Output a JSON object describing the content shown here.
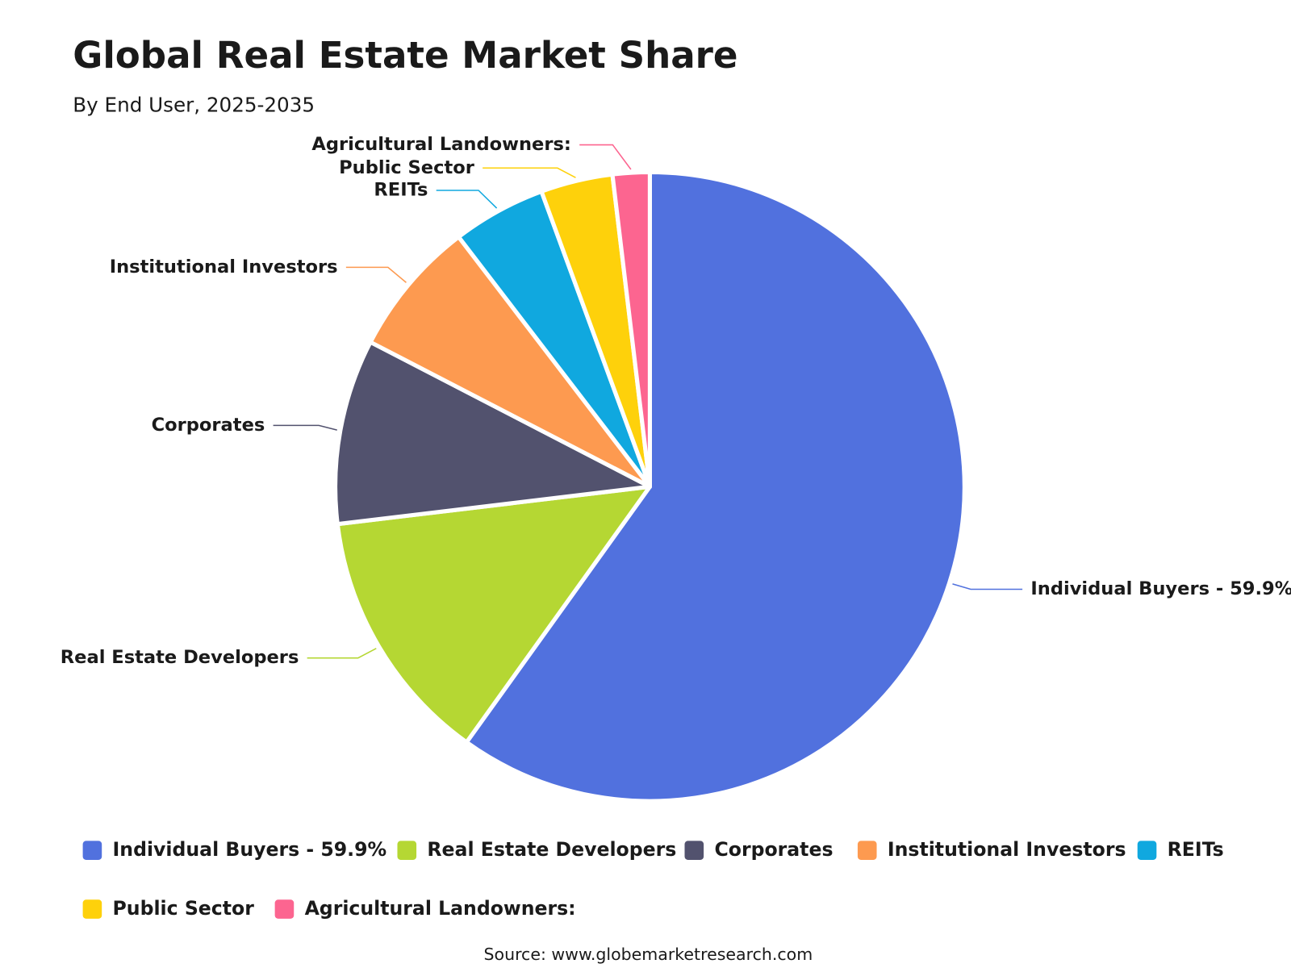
{
  "chart_data": {
    "type": "pie",
    "title": "Global Real Estate Market Share",
    "subtitle": "By End User, 2025-2035",
    "categories": [
      "Individual Buyers - 59.9%",
      "Real Estate Developers",
      "Corporates",
      "Institutional Investors",
      "REITs",
      "Public Sector",
      "Agricultural Landowners:"
    ],
    "values": [
      59.9,
      13.2,
      9.5,
      7.0,
      4.8,
      3.7,
      1.9
    ],
    "colors": [
      "#5171de",
      "#b5d733",
      "#52526e",
      "#fd9a50",
      "#10a8df",
      "#fed10b",
      "#fc6590"
    ],
    "source": "Source: www.globemarketresearch.com"
  }
}
